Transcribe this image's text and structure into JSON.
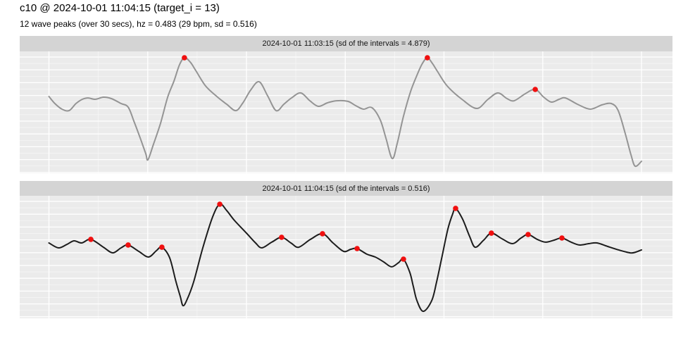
{
  "header": {
    "title": "c10 @ 2024-10-01 11:04:15 (target_i = 13)",
    "subtitle": "12 wave peaks (over 30 secs), hz = 0.483 (29 bpm, sd = 0.516)"
  },
  "colors": {
    "panel_bg": "#ebebeb",
    "strip_bg": "#d4d4d4",
    "grid": "#ffffff",
    "peak_marker": "#f01010",
    "title_text": "#000000",
    "strip_text": "#141414"
  },
  "chart_data": [
    {
      "type": "line",
      "title": "2024-10-01 11:03:15 (sd of the intervals = 4.879)",
      "x_unit": "seconds",
      "x_range": [
        0,
        30
      ],
      "x_gridline_interval": 5,
      "y_range": [
        0,
        1
      ],
      "y_unit": "normalized amplitude",
      "grid": "major+minor, no axis labels",
      "legend": "none",
      "line_color": "#949494",
      "peak_color": "#f01010",
      "peak_count": 3,
      "points": [
        [
          0,
          0.63
        ],
        [
          0.3,
          0.572
        ],
        [
          0.66,
          0.526
        ],
        [
          1.02,
          0.514
        ],
        [
          1.37,
          0.572
        ],
        [
          1.69,
          0.607
        ],
        [
          1.98,
          0.618
        ],
        [
          2.34,
          0.607
        ],
        [
          2.76,
          0.624
        ],
        [
          3.16,
          0.613
        ],
        [
          3.65,
          0.572
        ],
        [
          4.01,
          0.543
        ],
        [
          4.3,
          0.428
        ],
        [
          4.62,
          0.289
        ],
        [
          4.9,
          0.162
        ],
        [
          5.01,
          0.11
        ],
        [
          5.29,
          0.237
        ],
        [
          5.65,
          0.41
        ],
        [
          6.01,
          0.624
        ],
        [
          6.33,
          0.757
        ],
        [
          6.61,
          0.89
        ],
        [
          6.86,
          0.948
        ],
        [
          7.15,
          0.913
        ],
        [
          7.43,
          0.844
        ],
        [
          7.93,
          0.717
        ],
        [
          8.5,
          0.63
        ],
        [
          9.0,
          0.566
        ],
        [
          9.46,
          0.514
        ],
        [
          9.82,
          0.578
        ],
        [
          10.21,
          0.682
        ],
        [
          10.64,
          0.751
        ],
        [
          11.07,
          0.636
        ],
        [
          11.5,
          0.514
        ],
        [
          11.89,
          0.566
        ],
        [
          12.28,
          0.618
        ],
        [
          12.75,
          0.659
        ],
        [
          13.21,
          0.595
        ],
        [
          13.64,
          0.549
        ],
        [
          14.1,
          0.578
        ],
        [
          14.56,
          0.595
        ],
        [
          15.13,
          0.59
        ],
        [
          15.53,
          0.555
        ],
        [
          15.92,
          0.526
        ],
        [
          16.35,
          0.538
        ],
        [
          16.77,
          0.439
        ],
        [
          17.06,
          0.289
        ],
        [
          17.38,
          0.121
        ],
        [
          17.63,
          0.243
        ],
        [
          17.95,
          0.468
        ],
        [
          18.31,
          0.671
        ],
        [
          18.66,
          0.815
        ],
        [
          18.91,
          0.902
        ],
        [
          19.16,
          0.948
        ],
        [
          19.41,
          0.902
        ],
        [
          19.66,
          0.838
        ],
        [
          20.16,
          0.717
        ],
        [
          20.91,
          0.607
        ],
        [
          21.66,
          0.532
        ],
        [
          22.23,
          0.607
        ],
        [
          22.73,
          0.659
        ],
        [
          23.19,
          0.613
        ],
        [
          23.55,
          0.595
        ],
        [
          24.12,
          0.653
        ],
        [
          24.62,
          0.688
        ],
        [
          25.05,
          0.624
        ],
        [
          25.44,
          0.584
        ],
        [
          25.83,
          0.607
        ],
        [
          26.15,
          0.618
        ],
        [
          26.76,
          0.566
        ],
        [
          27.4,
          0.526
        ],
        [
          28.0,
          0.561
        ],
        [
          28.47,
          0.572
        ],
        [
          28.82,
          0.514
        ],
        [
          29.18,
          0.324
        ],
        [
          29.47,
          0.15
        ],
        [
          29.68,
          0.058
        ],
        [
          30,
          0.098
        ]
      ],
      "peaks": [
        [
          6.86,
          0.948
        ],
        [
          19.16,
          0.948
        ],
        [
          24.62,
          0.688
        ]
      ]
    },
    {
      "type": "line",
      "title": "2024-10-01 11:04:15 (sd of the intervals = 0.516)",
      "x_unit": "seconds",
      "x_range": [
        0,
        30
      ],
      "x_gridline_interval": 5,
      "y_range": [
        0,
        1
      ],
      "y_unit": "normalized amplitude",
      "grid": "major+minor, no axis labels",
      "legend": "none",
      "line_color": "#1c1c1c",
      "peak_color": "#f01010",
      "peak_count": 12,
      "points": [
        [
          0,
          0.615
        ],
        [
          0.48,
          0.575
        ],
        [
          0.91,
          0.603
        ],
        [
          1.27,
          0.632
        ],
        [
          1.66,
          0.615
        ],
        [
          2.12,
          0.644
        ],
        [
          2.76,
          0.58
        ],
        [
          3.23,
          0.534
        ],
        [
          3.65,
          0.575
        ],
        [
          4.01,
          0.598
        ],
        [
          4.55,
          0.546
        ],
        [
          5.04,
          0.5
        ],
        [
          5.44,
          0.552
        ],
        [
          5.72,
          0.58
        ],
        [
          6.11,
          0.494
        ],
        [
          6.43,
          0.299
        ],
        [
          6.65,
          0.178
        ],
        [
          6.79,
          0.103
        ],
        [
          7.0,
          0.155
        ],
        [
          7.33,
          0.299
        ],
        [
          7.79,
          0.575
        ],
        [
          8.29,
          0.828
        ],
        [
          8.65,
          0.931
        ],
        [
          9.0,
          0.879
        ],
        [
          9.39,
          0.799
        ],
        [
          10.0,
          0.695
        ],
        [
          10.46,
          0.615
        ],
        [
          10.78,
          0.575
        ],
        [
          11.28,
          0.621
        ],
        [
          11.78,
          0.661
        ],
        [
          12.25,
          0.615
        ],
        [
          12.64,
          0.58
        ],
        [
          13.24,
          0.644
        ],
        [
          13.85,
          0.69
        ],
        [
          14.38,
          0.615
        ],
        [
          14.92,
          0.546
        ],
        [
          15.28,
          0.563
        ],
        [
          15.6,
          0.569
        ],
        [
          16.1,
          0.523
        ],
        [
          16.52,
          0.5
        ],
        [
          16.95,
          0.46
        ],
        [
          17.34,
          0.42
        ],
        [
          17.7,
          0.454
        ],
        [
          17.95,
          0.483
        ],
        [
          18.27,
          0.374
        ],
        [
          18.45,
          0.259
        ],
        [
          18.63,
          0.144
        ],
        [
          18.95,
          0.057
        ],
        [
          19.38,
          0.144
        ],
        [
          19.63,
          0.299
        ],
        [
          19.91,
          0.511
        ],
        [
          20.2,
          0.73
        ],
        [
          20.45,
          0.856
        ],
        [
          20.59,
          0.897
        ],
        [
          20.94,
          0.81
        ],
        [
          21.3,
          0.667
        ],
        [
          21.58,
          0.58
        ],
        [
          22.01,
          0.638
        ],
        [
          22.4,
          0.695
        ],
        [
          22.94,
          0.649
        ],
        [
          23.47,
          0.609
        ],
        [
          23.9,
          0.655
        ],
        [
          24.26,
          0.684
        ],
        [
          24.72,
          0.644
        ],
        [
          25.15,
          0.621
        ],
        [
          25.58,
          0.638
        ],
        [
          25.97,
          0.655
        ],
        [
          26.44,
          0.621
        ],
        [
          26.86,
          0.598
        ],
        [
          27.33,
          0.609
        ],
        [
          27.75,
          0.615
        ],
        [
          28.29,
          0.586
        ],
        [
          28.86,
          0.557
        ],
        [
          29.43,
          0.534
        ],
        [
          29.71,
          0.54
        ],
        [
          30,
          0.558
        ]
      ],
      "peaks": [
        [
          2.12,
          0.644
        ],
        [
          4.01,
          0.598
        ],
        [
          5.72,
          0.58
        ],
        [
          8.65,
          0.931
        ],
        [
          11.78,
          0.661
        ],
        [
          13.85,
          0.69
        ],
        [
          15.6,
          0.569
        ],
        [
          17.95,
          0.483
        ],
        [
          20.59,
          0.897
        ],
        [
          22.4,
          0.695
        ],
        [
          24.26,
          0.684
        ],
        [
          25.97,
          0.655
        ]
      ]
    }
  ]
}
